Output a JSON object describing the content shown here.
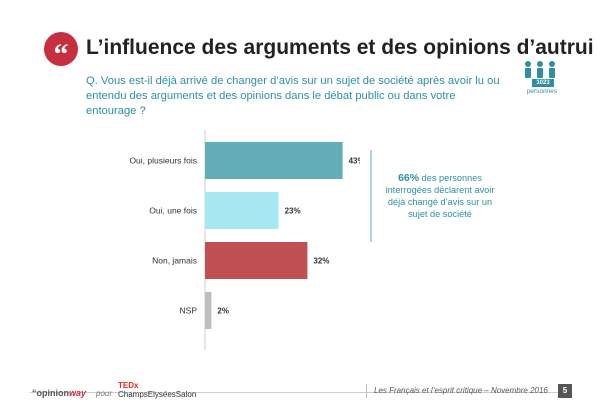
{
  "header": {
    "title": "L’influence des arguments et des opinions d’autrui",
    "question": "Q. Vous est-il déjà arrivé de changer d’avis sur un sujet de société après avoir lu ou entendu des arguments et des opinions dans le débat public ou dans votre entourage ?"
  },
  "icons": {
    "quote": "quote-icon",
    "people": "people-icon",
    "quote_glyph": "“"
  },
  "sample": {
    "count": "1023",
    "label": "personnes"
  },
  "colors": {
    "accent": "#c62f3f",
    "teal_text": "#2f8fa0"
  },
  "chart_data": {
    "type": "bar",
    "orientation": "horizontal",
    "categories": [
      "Oui, plusieurs fois",
      "Oui, une fois",
      "Non, jamais",
      "NSP"
    ],
    "values": [
      43,
      23,
      32,
      2
    ],
    "value_labels": [
      "43%",
      "23%",
      "32%",
      "2%"
    ],
    "colors": [
      "#62aeb7",
      "#a6e8f2",
      "#c05052",
      "#bdbdbd"
    ],
    "xlim": [
      0,
      100
    ],
    "grid": false,
    "legend": "none"
  },
  "callout": {
    "highlight": "66%",
    "text": " des personnes interrogées déclarent avoir déjà changé d’avis sur un sujet de société"
  },
  "footer": {
    "brand_prefix": "“opinion",
    "brand_suffix": "way",
    "pour": "pour",
    "ted": "TEDx",
    "ted_sub": "ChampsElyséesSalon",
    "text": "Les Français et l’esprit critique – Novembre 2016",
    "page": "5"
  }
}
